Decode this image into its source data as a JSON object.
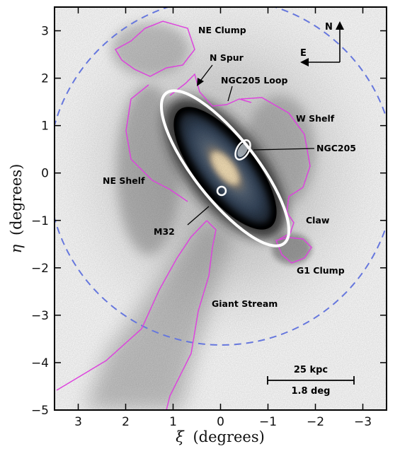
{
  "x_axis": {
    "label_symbol": "ξ",
    "label_unit": "(degrees)",
    "ticks": [
      "3",
      "2",
      "1",
      "0",
      "−1",
      "−2",
      "−3"
    ],
    "tick_values": [
      3,
      2,
      1,
      0,
      -1,
      -2,
      -3
    ],
    "range": [
      3.5,
      -3.5
    ]
  },
  "y_axis": {
    "label_symbol": "η",
    "label_unit": "(degrees)",
    "ticks": [
      "3",
      "2",
      "1",
      "0",
      "−1",
      "−2",
      "−3",
      "−4",
      "−5"
    ],
    "tick_values": [
      3,
      2,
      1,
      0,
      -1,
      -2,
      -3,
      -4,
      -5
    ],
    "range": [
      -5,
      3.5
    ]
  },
  "features": {
    "ne_clump": "NE Clump",
    "n_spur": "N Spur",
    "ngc205_loop": "NGC205 Loop",
    "w_shelf": "W Shelf",
    "ngc205": "NGC205",
    "ne_shelf": "NE Shelf",
    "claw": "Claw",
    "m32": "M32",
    "g1_clump": "G1 Clump",
    "giant_stream": "Giant Stream"
  },
  "compass": {
    "north": "N",
    "east": "E"
  },
  "scale_bar": {
    "physical": "25 kpc",
    "angular": "1.8 deg"
  },
  "colors": {
    "contour": "#dd44dd",
    "dashed_circle": "#6677dd",
    "ellipse": "#ffffff",
    "halo": "#8a8a8a"
  }
}
